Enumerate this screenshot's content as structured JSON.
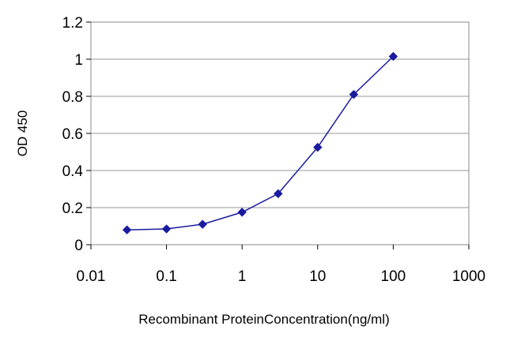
{
  "chart_data": {
    "type": "line",
    "title": "",
    "xlabel": "Recombinant ProteinConcentration(ng/ml)",
    "ylabel": "OD 450",
    "x_scale": "log",
    "xlim": [
      0.01,
      1000
    ],
    "ylim": [
      0,
      1.2
    ],
    "x_ticks": [
      {
        "value": 0.01,
        "label": "0.01"
      },
      {
        "value": 0.1,
        "label": "0.1"
      },
      {
        "value": 1,
        "label": "1"
      },
      {
        "value": 10,
        "label": "10"
      },
      {
        "value": 100,
        "label": "100"
      },
      {
        "value": 1000,
        "label": "1000"
      }
    ],
    "y_ticks": [
      {
        "value": 0,
        "label": "0"
      },
      {
        "value": 0.2,
        "label": "0.2"
      },
      {
        "value": 0.4,
        "label": "0.4"
      },
      {
        "value": 0.6,
        "label": "0.6"
      },
      {
        "value": 0.8,
        "label": "0.8"
      },
      {
        "value": 1,
        "label": "1"
      },
      {
        "value": 1.2,
        "label": "1.2"
      }
    ],
    "grid": "horizontal",
    "legend": "none",
    "series": [
      {
        "color": "#1a1aa0",
        "marker": "diamond",
        "x": [
          0.03,
          0.1,
          0.3,
          1,
          3,
          10,
          30,
          100
        ],
        "y": [
          0.08,
          0.085,
          0.11,
          0.175,
          0.275,
          0.525,
          0.81,
          1.015
        ]
      }
    ]
  }
}
